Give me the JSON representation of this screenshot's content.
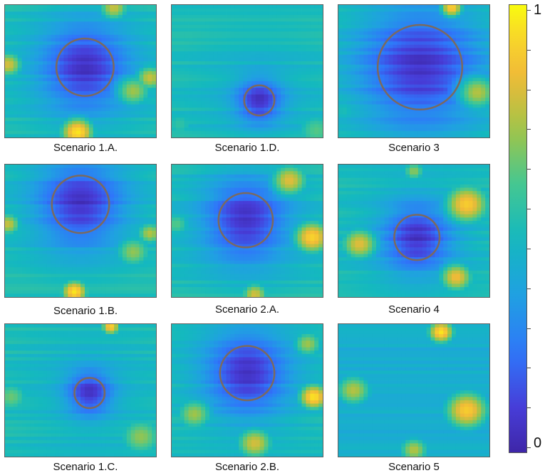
{
  "chart_data": {
    "type": "heatmap",
    "colormap": "parula",
    "colorbar": {
      "min": 0,
      "max": 1,
      "min_label": "0",
      "max_label": "1",
      "ticks": 12
    },
    "marker_color": "#7b6a5e",
    "panels": [
      {
        "id": "p1",
        "caption": "Scenario 1.A.",
        "circle": {
          "cx": 0.53,
          "cy": 0.47,
          "r": 0.19
        },
        "hotspots": [
          {
            "x": 0.48,
            "y": 0.96,
            "s": 0.09,
            "v": 0.96
          },
          {
            "x": 0.02,
            "y": 0.45,
            "s": 0.08,
            "v": 0.8
          },
          {
            "x": 0.96,
            "y": 0.55,
            "s": 0.08,
            "v": 0.78
          },
          {
            "x": 0.72,
            "y": 0.02,
            "s": 0.08,
            "v": 0.78
          },
          {
            "x": 0.85,
            "y": 0.65,
            "s": 0.1,
            "v": 0.72
          }
        ]
      },
      {
        "id": "p2",
        "caption": "Scenario 1.D.",
        "circle": {
          "cx": 0.58,
          "cy": 0.72,
          "r": 0.1
        },
        "hotspots": [
          {
            "x": 0.96,
            "y": 0.95,
            "s": 0.12,
            "v": 0.62
          },
          {
            "x": 0.05,
            "y": 0.9,
            "s": 0.1,
            "v": 0.55
          }
        ]
      },
      {
        "id": "p3",
        "caption": "Scenario 3",
        "circle": {
          "cx": 0.54,
          "cy": 0.47,
          "r": 0.28
        },
        "hotspots": [
          {
            "x": 0.75,
            "y": 0.02,
            "s": 0.06,
            "v": 0.92
          },
          {
            "x": 0.92,
            "y": 0.66,
            "s": 0.11,
            "v": 0.75
          },
          {
            "x": 0.03,
            "y": 0.8,
            "s": 0.1,
            "v": 0.5
          }
        ]
      },
      {
        "id": "p4",
        "caption": "Scenario 1.B.",
        "circle": {
          "cx": 0.5,
          "cy": 0.3,
          "r": 0.19
        },
        "hotspots": [
          {
            "x": 0.46,
            "y": 0.96,
            "s": 0.07,
            "v": 0.96
          },
          {
            "x": 0.02,
            "y": 0.45,
            "s": 0.07,
            "v": 0.78
          },
          {
            "x": 0.96,
            "y": 0.52,
            "s": 0.07,
            "v": 0.75
          },
          {
            "x": 0.85,
            "y": 0.66,
            "s": 0.1,
            "v": 0.7
          }
        ]
      },
      {
        "id": "p5",
        "caption": "Scenario 2.A.",
        "circle": {
          "cx": 0.49,
          "cy": 0.42,
          "r": 0.18
        },
        "hotspots": [
          {
            "x": 0.78,
            "y": 0.12,
            "s": 0.1,
            "v": 0.82
          },
          {
            "x": 0.93,
            "y": 0.55,
            "s": 0.1,
            "v": 0.92
          },
          {
            "x": 0.55,
            "y": 0.98,
            "s": 0.07,
            "v": 0.8
          },
          {
            "x": 0.03,
            "y": 0.45,
            "s": 0.08,
            "v": 0.62
          }
        ]
      },
      {
        "id": "p6",
        "caption": "Scenario 4",
        "circle": {
          "cx": 0.52,
          "cy": 0.55,
          "r": 0.15
        },
        "hotspots": [
          {
            "x": 0.85,
            "y": 0.3,
            "s": 0.12,
            "v": 0.9
          },
          {
            "x": 0.78,
            "y": 0.85,
            "s": 0.09,
            "v": 0.85
          },
          {
            "x": 0.14,
            "y": 0.6,
            "s": 0.1,
            "v": 0.82
          },
          {
            "x": 0.5,
            "y": 0.05,
            "s": 0.06,
            "v": 0.7
          }
        ]
      },
      {
        "id": "p7",
        "caption": "Scenario 1.C.",
        "circle": {
          "cx": 0.56,
          "cy": 0.52,
          "r": 0.1
        },
        "hotspots": [
          {
            "x": 0.7,
            "y": 0.02,
            "s": 0.05,
            "v": 0.92
          },
          {
            "x": 0.9,
            "y": 0.85,
            "s": 0.12,
            "v": 0.7
          },
          {
            "x": 0.04,
            "y": 0.55,
            "s": 0.1,
            "v": 0.65
          }
        ]
      },
      {
        "id": "p8",
        "caption": "Scenario 2.B.",
        "circle": {
          "cx": 0.5,
          "cy": 0.37,
          "r": 0.18
        },
        "hotspots": [
          {
            "x": 0.94,
            "y": 0.55,
            "s": 0.08,
            "v": 0.96
          },
          {
            "x": 0.55,
            "y": 0.9,
            "s": 0.1,
            "v": 0.8
          },
          {
            "x": 0.15,
            "y": 0.68,
            "s": 0.1,
            "v": 0.72
          },
          {
            "x": 0.9,
            "y": 0.15,
            "s": 0.08,
            "v": 0.72
          }
        ]
      },
      {
        "id": "p9",
        "caption": "Scenario 5",
        "circle": null,
        "hotspots": [
          {
            "x": 0.68,
            "y": 0.06,
            "s": 0.07,
            "v": 0.96
          },
          {
            "x": 0.85,
            "y": 0.65,
            "s": 0.12,
            "v": 0.9
          },
          {
            "x": 0.1,
            "y": 0.5,
            "s": 0.1,
            "v": 0.75
          },
          {
            "x": 0.5,
            "y": 0.95,
            "s": 0.08,
            "v": 0.75
          }
        ]
      }
    ]
  }
}
